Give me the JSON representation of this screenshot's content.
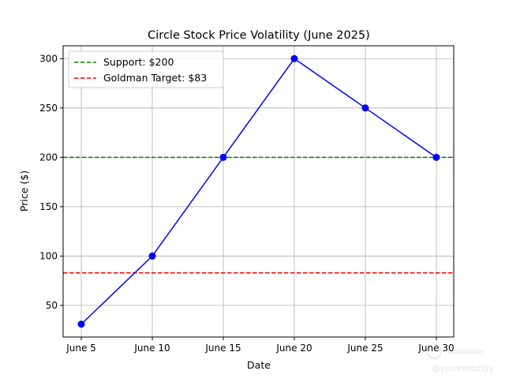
{
  "chart_data": {
    "type": "line",
    "title": "Circle Stock Price Volatility (June 2025)",
    "xlabel": "Date",
    "ylabel": "Price ($)",
    "categories": [
      "June 5",
      "June 10",
      "June 15",
      "June 20",
      "June 25",
      "June 30"
    ],
    "series": [
      {
        "name": "Price",
        "values": [
          31,
          100,
          200,
          300,
          250,
          200
        ],
        "color": "#0000ff"
      }
    ],
    "hlines": [
      {
        "label": "Support: $200",
        "value": 200,
        "color": "#008000"
      },
      {
        "label": "Goldman Target: $83",
        "value": 83,
        "color": "#ff0000"
      }
    ],
    "yticks": [
      50,
      100,
      150,
      200,
      250,
      300
    ],
    "ylim": [
      18,
      313
    ],
    "grid": true,
    "legend": "top-left"
  },
  "watermark": {
    "line1": "Community",
    "line2": "@yourcelesttyy"
  }
}
